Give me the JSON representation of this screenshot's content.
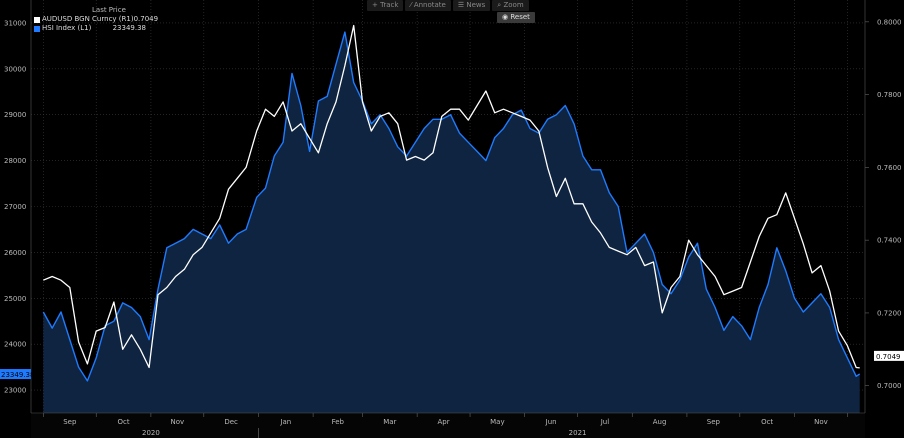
{
  "toolbar": {
    "track": "Track",
    "annotate": "Annotate",
    "news": "News",
    "zoom": "Zoom",
    "reset": "Reset"
  },
  "legend": {
    "header": "Last Price",
    "entries": [
      {
        "name": "AUDUSD BGN Curncy  (R1)",
        "value": "0.7049",
        "color": "#ffffff"
      },
      {
        "name": "HSI Index  (L1)",
        "value": "23349.38",
        "color": "#1e7bff"
      }
    ]
  },
  "colors": {
    "background": "#000000",
    "area_fill": "#0f2440",
    "hsi_line": "#1e7bff",
    "aud_line": "#ffffff",
    "grid": "#3a3a3a",
    "hsi_tag": "#1e7bff",
    "aud_tag": "#ffffff"
  },
  "chart_data": {
    "type": "line",
    "title": "",
    "legend_position": "top-left",
    "grid": true,
    "x_months": [
      "Sep",
      "Oct",
      "Nov",
      "Dec",
      "Jan",
      "Feb",
      "Mar",
      "Apr",
      "May",
      "Jun",
      "Jul",
      "Aug",
      "Sep",
      "Oct",
      "Nov"
    ],
    "x_years": [
      "2020",
      "2021"
    ],
    "left_axis": {
      "series": "HSI Index (L1)",
      "ticks": [
        23000,
        24000,
        25000,
        26000,
        27000,
        28000,
        29000,
        30000,
        31000
      ],
      "ylim": [
        22500,
        31500
      ],
      "last_value_tag": "23349.38"
    },
    "right_axis": {
      "series": "AUDUSD BGN Curncy (R1)",
      "ticks": [
        "0.7000",
        "0.7200",
        "0.7400",
        "0.7600",
        "0.7800",
        "0.8000"
      ],
      "ylim": [
        0.6925,
        0.806
      ],
      "last_value_tag": "0.7049"
    },
    "series": [
      {
        "name": "HSI Index (L1)",
        "axis": "left",
        "points": [
          [
            "2020-09-01",
            24700
          ],
          [
            "2020-09-06",
            24350
          ],
          [
            "2020-09-11",
            24700
          ],
          [
            "2020-09-16",
            24100
          ],
          [
            "2020-09-21",
            23500
          ],
          [
            "2020-09-26",
            23200
          ],
          [
            "2020-10-01",
            23700
          ],
          [
            "2020-10-06",
            24400
          ],
          [
            "2020-10-11",
            24500
          ],
          [
            "2020-10-16",
            24900
          ],
          [
            "2020-10-21",
            24800
          ],
          [
            "2020-10-26",
            24600
          ],
          [
            "2020-10-31",
            24100
          ],
          [
            "2020-11-05",
            25200
          ],
          [
            "2020-11-10",
            26100
          ],
          [
            "2020-11-15",
            26200
          ],
          [
            "2020-11-20",
            26300
          ],
          [
            "2020-11-25",
            26500
          ],
          [
            "2020-11-30",
            26400
          ],
          [
            "2020-12-05",
            26300
          ],
          [
            "2020-12-10",
            26600
          ],
          [
            "2020-12-15",
            26200
          ],
          [
            "2020-12-20",
            26400
          ],
          [
            "2020-12-25",
            26500
          ],
          [
            "2020-12-31",
            27200
          ],
          [
            "2021-01-05",
            27400
          ],
          [
            "2021-01-10",
            28100
          ],
          [
            "2021-01-15",
            28400
          ],
          [
            "2021-01-20",
            29900
          ],
          [
            "2021-01-25",
            29200
          ],
          [
            "2021-01-30",
            28200
          ],
          [
            "2021-02-04",
            29300
          ],
          [
            "2021-02-09",
            29400
          ],
          [
            "2021-02-14",
            30100
          ],
          [
            "2021-02-19",
            30800
          ],
          [
            "2021-02-24",
            29700
          ],
          [
            "2021-03-01",
            29300
          ],
          [
            "2021-03-06",
            28800
          ],
          [
            "2021-03-11",
            29000
          ],
          [
            "2021-03-16",
            28700
          ],
          [
            "2021-03-21",
            28300
          ],
          [
            "2021-03-26",
            28100
          ],
          [
            "2021-03-31",
            28400
          ],
          [
            "2021-04-05",
            28700
          ],
          [
            "2021-04-10",
            28900
          ],
          [
            "2021-04-15",
            28900
          ],
          [
            "2021-04-20",
            29000
          ],
          [
            "2021-04-25",
            28600
          ],
          [
            "2021-04-30",
            28400
          ],
          [
            "2021-05-05",
            28200
          ],
          [
            "2021-05-10",
            28000
          ],
          [
            "2021-05-15",
            28500
          ],
          [
            "2021-05-20",
            28700
          ],
          [
            "2021-05-25",
            29000
          ],
          [
            "2021-05-30",
            29100
          ],
          [
            "2021-06-04",
            28700
          ],
          [
            "2021-06-09",
            28600
          ],
          [
            "2021-06-14",
            28900
          ],
          [
            "2021-06-19",
            29000
          ],
          [
            "2021-06-24",
            29200
          ],
          [
            "2021-06-29",
            28800
          ],
          [
            "2021-07-04",
            28100
          ],
          [
            "2021-07-09",
            27800
          ],
          [
            "2021-07-14",
            27800
          ],
          [
            "2021-07-19",
            27300
          ],
          [
            "2021-07-24",
            27000
          ],
          [
            "2021-07-29",
            26000
          ],
          [
            "2021-08-03",
            26200
          ],
          [
            "2021-08-08",
            26400
          ],
          [
            "2021-08-13",
            26000
          ],
          [
            "2021-08-18",
            25300
          ],
          [
            "2021-08-23",
            25100
          ],
          [
            "2021-08-28",
            25400
          ],
          [
            "2021-09-02",
            25900
          ],
          [
            "2021-09-07",
            26200
          ],
          [
            "2021-09-12",
            25200
          ],
          [
            "2021-09-17",
            24800
          ],
          [
            "2021-09-22",
            24300
          ],
          [
            "2021-09-27",
            24600
          ],
          [
            "2021-10-02",
            24400
          ],
          [
            "2021-10-07",
            24100
          ],
          [
            "2021-10-12",
            24800
          ],
          [
            "2021-10-17",
            25300
          ],
          [
            "2021-10-22",
            26100
          ],
          [
            "2021-10-27",
            25600
          ],
          [
            "2021-11-01",
            25000
          ],
          [
            "2021-11-06",
            24700
          ],
          [
            "2021-11-11",
            24900
          ],
          [
            "2021-11-16",
            25100
          ],
          [
            "2021-11-21",
            24800
          ],
          [
            "2021-11-26",
            24100
          ],
          [
            "2021-12-01",
            23700
          ],
          [
            "2021-12-06",
            23300
          ],
          [
            "2021-12-08",
            23349
          ]
        ]
      },
      {
        "name": "AUDUSD BGN Curncy (R1)",
        "axis": "right",
        "points": [
          [
            "2020-09-01",
            0.729
          ],
          [
            "2020-09-06",
            0.73
          ],
          [
            "2020-09-11",
            0.729
          ],
          [
            "2020-09-16",
            0.727
          ],
          [
            "2020-09-21",
            0.712
          ],
          [
            "2020-09-26",
            0.706
          ],
          [
            "2020-10-01",
            0.715
          ],
          [
            "2020-10-06",
            0.716
          ],
          [
            "2020-10-11",
            0.723
          ],
          [
            "2020-10-16",
            0.71
          ],
          [
            "2020-10-21",
            0.714
          ],
          [
            "2020-10-26",
            0.71
          ],
          [
            "2020-10-31",
            0.705
          ],
          [
            "2020-11-05",
            0.725
          ],
          [
            "2020-11-10",
            0.727
          ],
          [
            "2020-11-15",
            0.73
          ],
          [
            "2020-11-20",
            0.732
          ],
          [
            "2020-11-25",
            0.736
          ],
          [
            "2020-11-30",
            0.738
          ],
          [
            "2020-12-05",
            0.742
          ],
          [
            "2020-12-10",
            0.746
          ],
          [
            "2020-12-15",
            0.754
          ],
          [
            "2020-12-20",
            0.757
          ],
          [
            "2020-12-25",
            0.76
          ],
          [
            "2020-12-31",
            0.77
          ],
          [
            "2021-01-05",
            0.776
          ],
          [
            "2021-01-10",
            0.774
          ],
          [
            "2021-01-15",
            0.778
          ],
          [
            "2021-01-20",
            0.77
          ],
          [
            "2021-01-25",
            0.772
          ],
          [
            "2021-01-30",
            0.768
          ],
          [
            "2021-02-04",
            0.764
          ],
          [
            "2021-02-09",
            0.772
          ],
          [
            "2021-02-14",
            0.778
          ],
          [
            "2021-02-19",
            0.788
          ],
          [
            "2021-02-24",
            0.799
          ],
          [
            "2021-03-01",
            0.778
          ],
          [
            "2021-03-06",
            0.77
          ],
          [
            "2021-03-11",
            0.774
          ],
          [
            "2021-03-16",
            0.775
          ],
          [
            "2021-03-21",
            0.772
          ],
          [
            "2021-03-26",
            0.762
          ],
          [
            "2021-03-31",
            0.763
          ],
          [
            "2021-04-05",
            0.762
          ],
          [
            "2021-04-10",
            0.764
          ],
          [
            "2021-04-15",
            0.774
          ],
          [
            "2021-04-20",
            0.776
          ],
          [
            "2021-04-25",
            0.776
          ],
          [
            "2021-04-30",
            0.773
          ],
          [
            "2021-05-05",
            0.777
          ],
          [
            "2021-05-10",
            0.781
          ],
          [
            "2021-05-15",
            0.775
          ],
          [
            "2021-05-20",
            0.776
          ],
          [
            "2021-05-25",
            0.775
          ],
          [
            "2021-05-30",
            0.774
          ],
          [
            "2021-06-04",
            0.773
          ],
          [
            "2021-06-09",
            0.77
          ],
          [
            "2021-06-14",
            0.76
          ],
          [
            "2021-06-19",
            0.752
          ],
          [
            "2021-06-24",
            0.757
          ],
          [
            "2021-06-29",
            0.75
          ],
          [
            "2021-07-04",
            0.75
          ],
          [
            "2021-07-09",
            0.745
          ],
          [
            "2021-07-14",
            0.742
          ],
          [
            "2021-07-19",
            0.738
          ],
          [
            "2021-07-24",
            0.737
          ],
          [
            "2021-07-29",
            0.736
          ],
          [
            "2021-08-03",
            0.738
          ],
          [
            "2021-08-08",
            0.733
          ],
          [
            "2021-08-13",
            0.734
          ],
          [
            "2021-08-18",
            0.72
          ],
          [
            "2021-08-23",
            0.727
          ],
          [
            "2021-08-28",
            0.73
          ],
          [
            "2021-09-02",
            0.74
          ],
          [
            "2021-09-07",
            0.736
          ],
          [
            "2021-09-12",
            0.733
          ],
          [
            "2021-09-17",
            0.73
          ],
          [
            "2021-09-22",
            0.725
          ],
          [
            "2021-09-27",
            0.726
          ],
          [
            "2021-10-02",
            0.727
          ],
          [
            "2021-10-07",
            0.734
          ],
          [
            "2021-10-12",
            0.741
          ],
          [
            "2021-10-17",
            0.746
          ],
          [
            "2021-10-22",
            0.747
          ],
          [
            "2021-10-27",
            0.753
          ],
          [
            "2021-11-01",
            0.746
          ],
          [
            "2021-11-06",
            0.739
          ],
          [
            "2021-11-11",
            0.731
          ],
          [
            "2021-11-16",
            0.733
          ],
          [
            "2021-11-21",
            0.726
          ],
          [
            "2021-11-26",
            0.715
          ],
          [
            "2021-12-01",
            0.711
          ],
          [
            "2021-12-06",
            0.705
          ],
          [
            "2021-12-08",
            0.7049
          ]
        ]
      }
    ]
  }
}
